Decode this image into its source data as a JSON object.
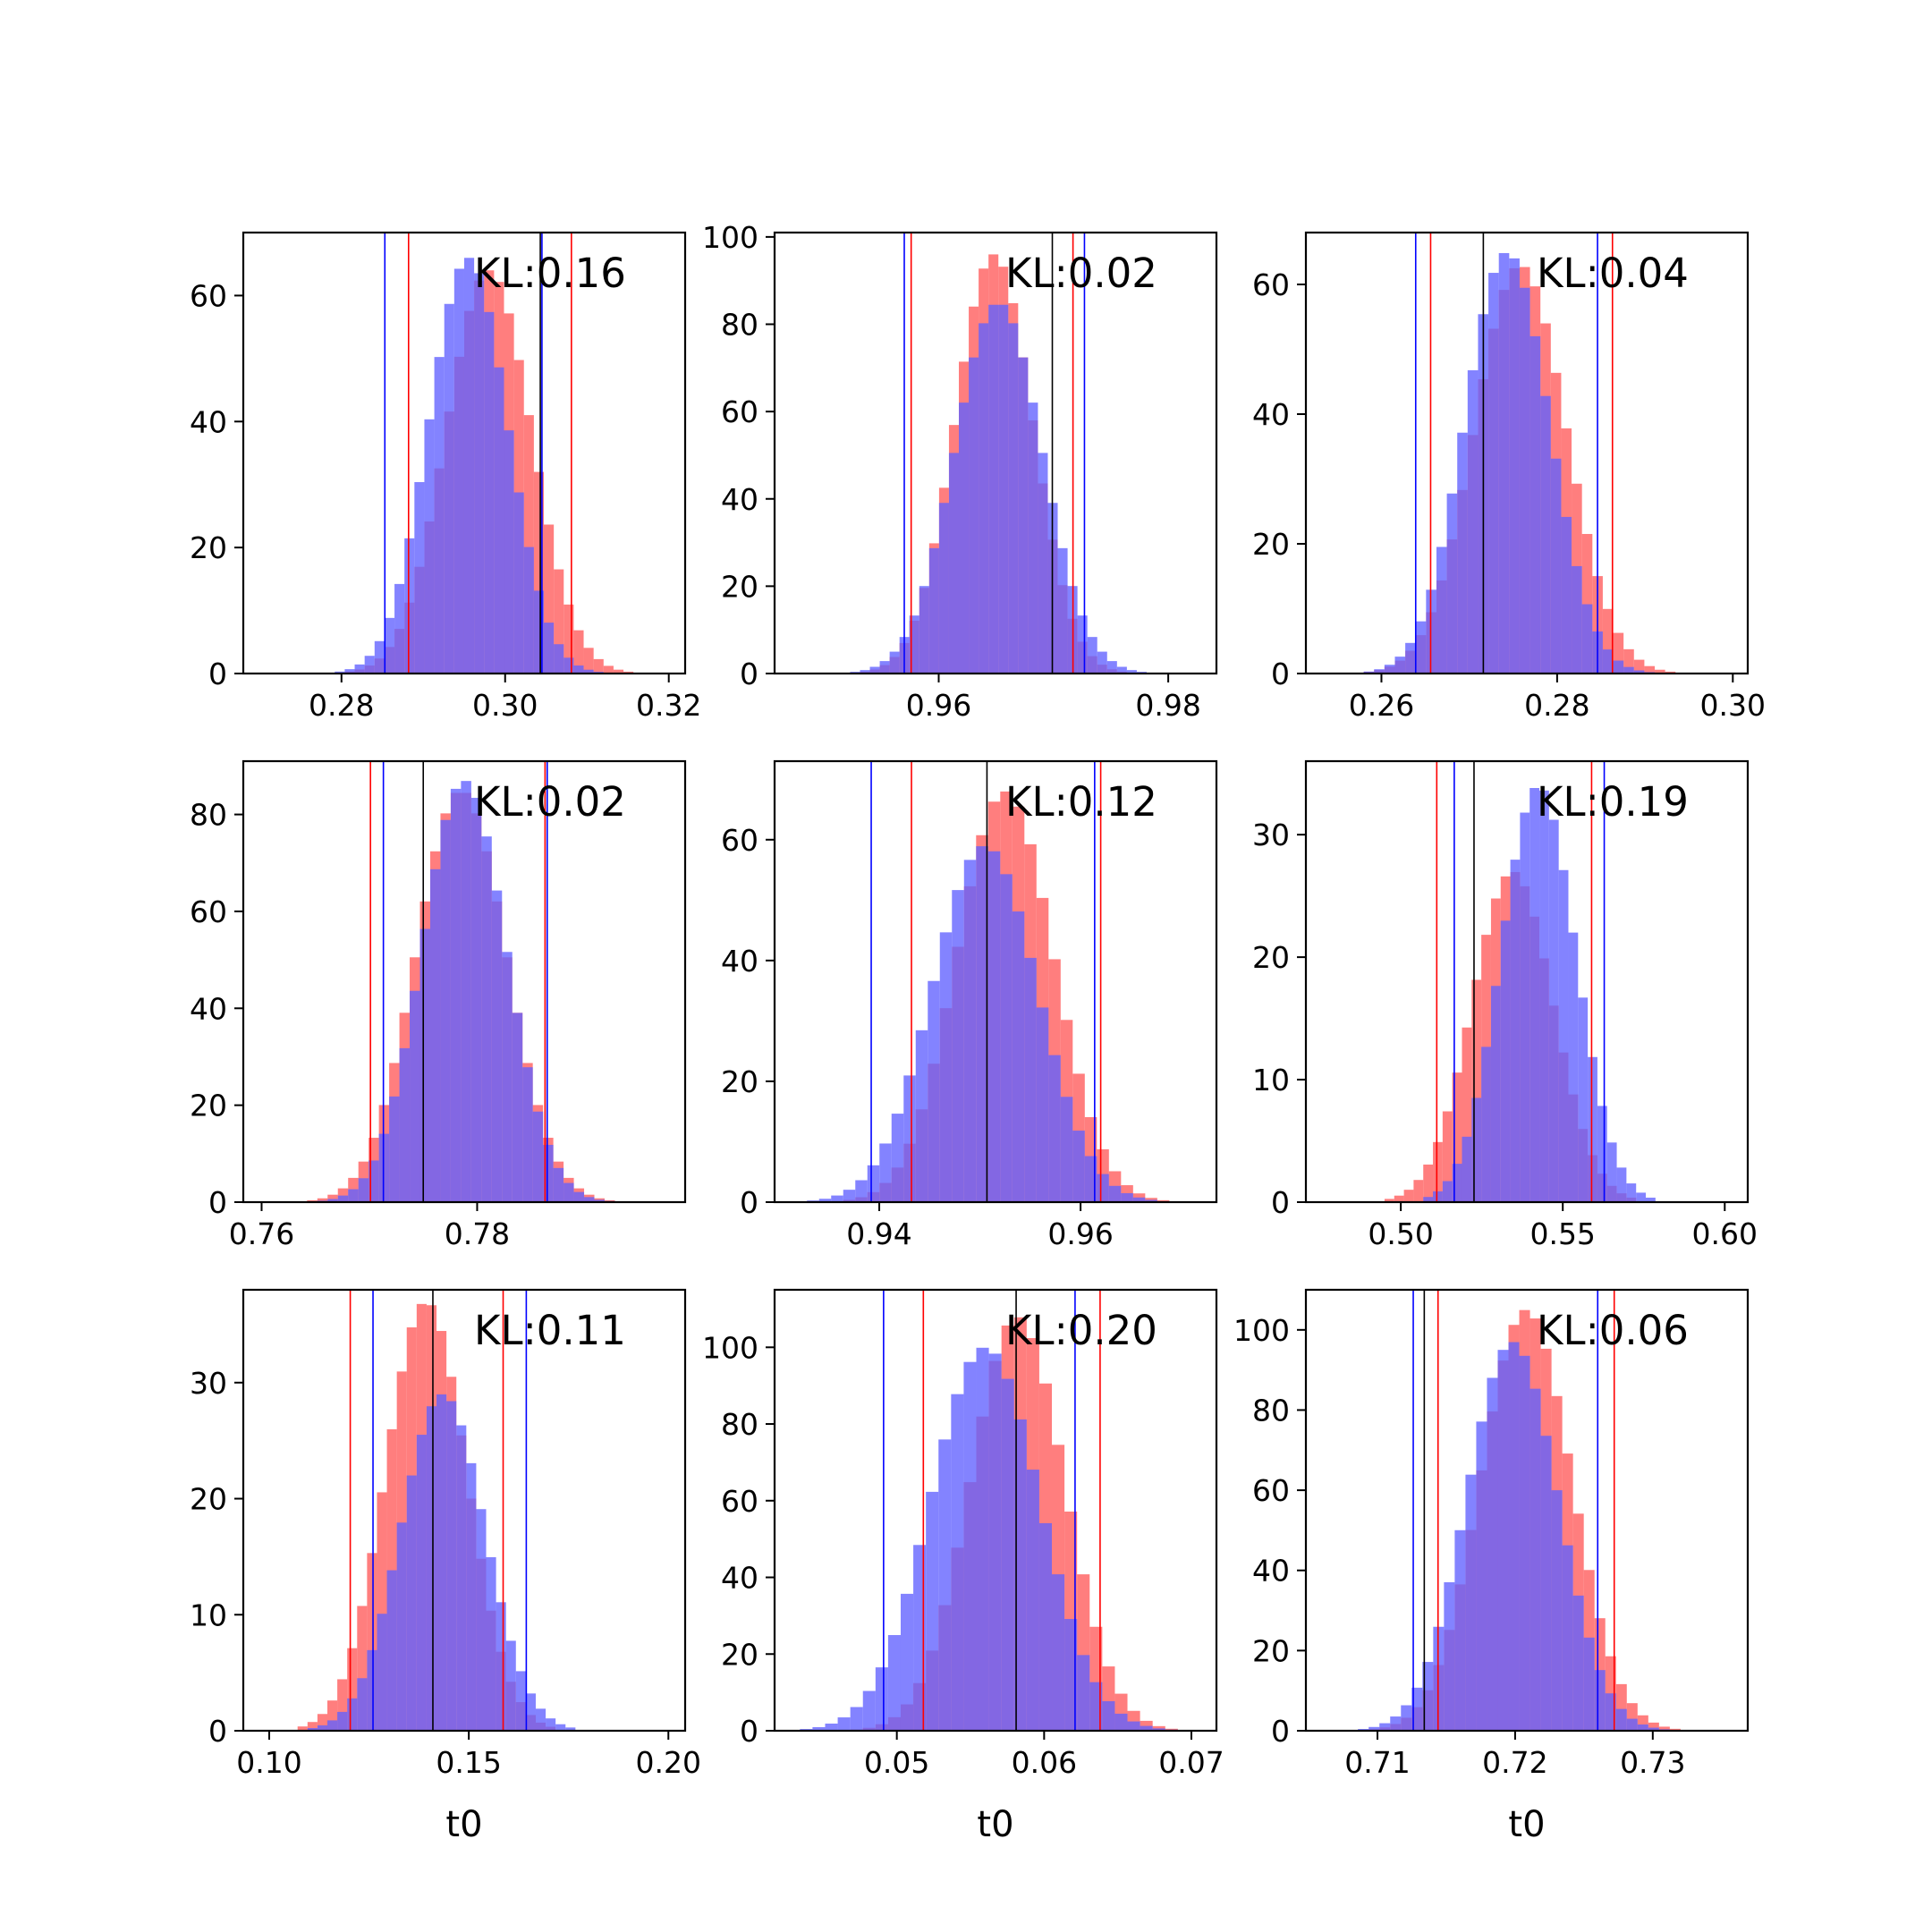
{
  "colors": {
    "red": "#ff0000",
    "blue": "#0000ff",
    "black": "#000000",
    "red_fill": "#ff5a5a",
    "blue_fill": "#6060ff"
  },
  "chart_data": [
    {
      "type": "histogram",
      "annotation": "KL:0.16",
      "xlabel": "",
      "xlim": [
        0.268,
        0.322
      ],
      "ylim": [
        0,
        70
      ],
      "xticks": [
        0.28,
        0.3,
        0.32
      ],
      "xtick_labels": [
        "0.28",
        "0.30",
        "0.32"
      ],
      "yticks": [
        0,
        20,
        40,
        60
      ],
      "ytick_labels": [
        "0",
        "20",
        "40",
        "60"
      ],
      "red": {
        "mean": 0.298,
        "sd": 0.0052,
        "peak": 64
      },
      "blue": {
        "mean": 0.2955,
        "sd": 0.0048,
        "peak": 66
      },
      "vlines": {
        "red": [
          0.2882,
          0.3081
        ],
        "blue": [
          0.2853,
          0.3045
        ],
        "black": [
          0.3043
        ]
      }
    },
    {
      "type": "histogram",
      "annotation": "KL:0.02",
      "xlabel": "",
      "xlim": [
        0.9457,
        0.9842
      ],
      "ylim": [
        0,
        101
      ],
      "xticks": [
        0.96,
        0.98
      ],
      "xtick_labels": [
        "0.96",
        "0.98"
      ],
      "yticks": [
        0,
        20,
        40,
        60,
        80,
        100
      ],
      "ytick_labels": [
        "0",
        "20",
        "40",
        "60",
        "80",
        "100"
      ],
      "red": {
        "mean": 0.9648,
        "sd": 0.0034,
        "peak": 96
      },
      "blue": {
        "mean": 0.9652,
        "sd": 0.0038,
        "peak": 85
      },
      "vlines": {
        "red": [
          0.9576,
          0.9717
        ],
        "blue": [
          0.957,
          0.9727
        ],
        "black": [
          0.9699
        ]
      }
    },
    {
      "type": "histogram",
      "annotation": "KL:0.04",
      "xlabel": "",
      "xlim": [
        0.2514,
        0.3017
      ],
      "ylim": [
        0,
        68
      ],
      "xticks": [
        0.26,
        0.28,
        0.3
      ],
      "xtick_labels": [
        "0.26",
        "0.28",
        "0.30"
      ],
      "yticks": [
        0,
        20,
        40,
        60
      ],
      "ytick_labels": [
        "0",
        "20",
        "40",
        "60"
      ],
      "red": {
        "mean": 0.2758,
        "sd": 0.0052,
        "peak": 63
      },
      "blue": {
        "mean": 0.2743,
        "sd": 0.0048,
        "peak": 65
      },
      "vlines": {
        "red": [
          0.2656,
          0.2863
        ],
        "blue": [
          0.2639,
          0.2846
        ],
        "black": [
          0.2716
        ]
      }
    },
    {
      "type": "histogram",
      "annotation": "KL:0.02",
      "xlabel": "",
      "xlim": [
        0.7583,
        0.7993
      ],
      "ylim": [
        0,
        91
      ],
      "xticks": [
        0.76,
        0.78
      ],
      "xtick_labels": [
        "0.76",
        "0.78"
      ],
      "yticks": [
        0,
        20,
        40,
        60,
        80
      ],
      "ytick_labels": [
        "0",
        "20",
        "40",
        "60",
        "80"
      ],
      "red": {
        "mean": 0.7785,
        "sd": 0.0042,
        "peak": 85
      },
      "blue": {
        "mean": 0.7788,
        "sd": 0.0039,
        "peak": 87
      },
      "vlines": {
        "red": [
          0.7701,
          0.7863
        ],
        "blue": [
          0.7713,
          0.7865
        ],
        "black": [
          0.775
        ]
      }
    },
    {
      "type": "histogram",
      "annotation": "KL:0.12",
      "xlabel": "",
      "xlim": [
        0.9296,
        0.9735
      ],
      "ylim": [
        0,
        73
      ],
      "xticks": [
        0.94,
        0.96
      ],
      "xtick_labels": [
        "0.94",
        "0.96"
      ],
      "yticks": [
        0,
        20,
        40,
        60
      ],
      "ytick_labels": [
        "0",
        "20",
        "40",
        "60"
      ],
      "red": {
        "mean": 0.9525,
        "sd": 0.0048,
        "peak": 68
      },
      "blue": {
        "mean": 0.9505,
        "sd": 0.0052,
        "peak": 59
      },
      "vlines": {
        "red": [
          0.9432,
          0.962
        ],
        "blue": [
          0.9392,
          0.9614
        ],
        "black": [
          0.9507
        ]
      }
    },
    {
      "type": "histogram",
      "annotation": "KL:0.19",
      "xlabel": "",
      "xlim": [
        0.4707,
        0.6071
      ],
      "ylim": [
        0,
        36
      ],
      "xticks": [
        0.5,
        0.55,
        0.6
      ],
      "xtick_labels": [
        "0.50",
        "0.55",
        "0.60"
      ],
      "yticks": [
        0,
        10,
        20,
        30
      ],
      "ytick_labels": [
        "0",
        "10",
        "20",
        "30"
      ],
      "red": {
        "mean": 0.5345,
        "sd": 0.0125,
        "peak": 27
      },
      "blue": {
        "mean": 0.5425,
        "sd": 0.0115,
        "peak": 34
      },
      "vlines": {
        "red": [
          0.5111,
          0.5589
        ],
        "blue": [
          0.5165,
          0.5628
        ],
        "black": [
          0.5226
        ]
      }
    },
    {
      "type": "histogram",
      "annotation": "KL:0.11",
      "xlabel": "t0",
      "xlim": [
        0.0935,
        0.2042
      ],
      "ylim": [
        0,
        38
      ],
      "xticks": [
        0.1,
        0.15,
        0.2
      ],
      "xtick_labels": [
        "0.10",
        "0.15",
        "0.20"
      ],
      "yticks": [
        0,
        10,
        20,
        30
      ],
      "ytick_labels": [
        "0",
        "10",
        "20",
        "30"
      ],
      "red": {
        "mean": 0.1393,
        "sd": 0.0102,
        "peak": 37
      },
      "blue": {
        "mean": 0.1435,
        "sd": 0.0105,
        "peak": 29
      },
      "vlines": {
        "red": [
          0.1203,
          0.1586
        ],
        "blue": [
          0.126,
          0.1644
        ],
        "black": [
          0.141
        ]
      }
    },
    {
      "type": "histogram",
      "annotation": "KL:0.20",
      "xlabel": "t0",
      "xlim": [
        0.0417,
        0.0717
      ],
      "ylim": [
        0,
        115
      ],
      "xticks": [
        0.05,
        0.06,
        0.07
      ],
      "xtick_labels": [
        "0.05",
        "0.06",
        "0.07"
      ],
      "yticks": [
        0,
        20,
        40,
        60,
        80,
        100
      ],
      "ytick_labels": [
        "0",
        "20",
        "40",
        "60",
        "80",
        "100"
      ],
      "red": {
        "mean": 0.0582,
        "sd": 0.0032,
        "peak": 108
      },
      "blue": {
        "mean": 0.056,
        "sd": 0.0037,
        "peak": 100
      },
      "vlines": {
        "red": [
          0.0518,
          0.0638
        ],
        "blue": [
          0.0491,
          0.0621
        ],
        "black": [
          0.0581
        ]
      }
    },
    {
      "type": "histogram",
      "annotation": "KL:0.06",
      "xlabel": "t0",
      "xlim": [
        0.7048,
        0.7369
      ],
      "ylim": [
        0,
        110
      ],
      "xticks": [
        0.71,
        0.72,
        0.73
      ],
      "xtick_labels": [
        "0.71",
        "0.72",
        "0.73"
      ],
      "yticks": [
        0,
        20,
        40,
        60,
        80,
        100
      ],
      "ytick_labels": [
        "0",
        "20",
        "40",
        "60",
        "80",
        "100"
      ],
      "red": {
        "mean": 0.7208,
        "sd": 0.0033,
        "peak": 105
      },
      "blue": {
        "mean": 0.7198,
        "sd": 0.0033,
        "peak": 97
      },
      "vlines": {
        "red": [
          0.7144,
          0.7272
        ],
        "blue": [
          0.7126,
          0.726
        ],
        "black": [
          0.7134
        ]
      }
    }
  ]
}
